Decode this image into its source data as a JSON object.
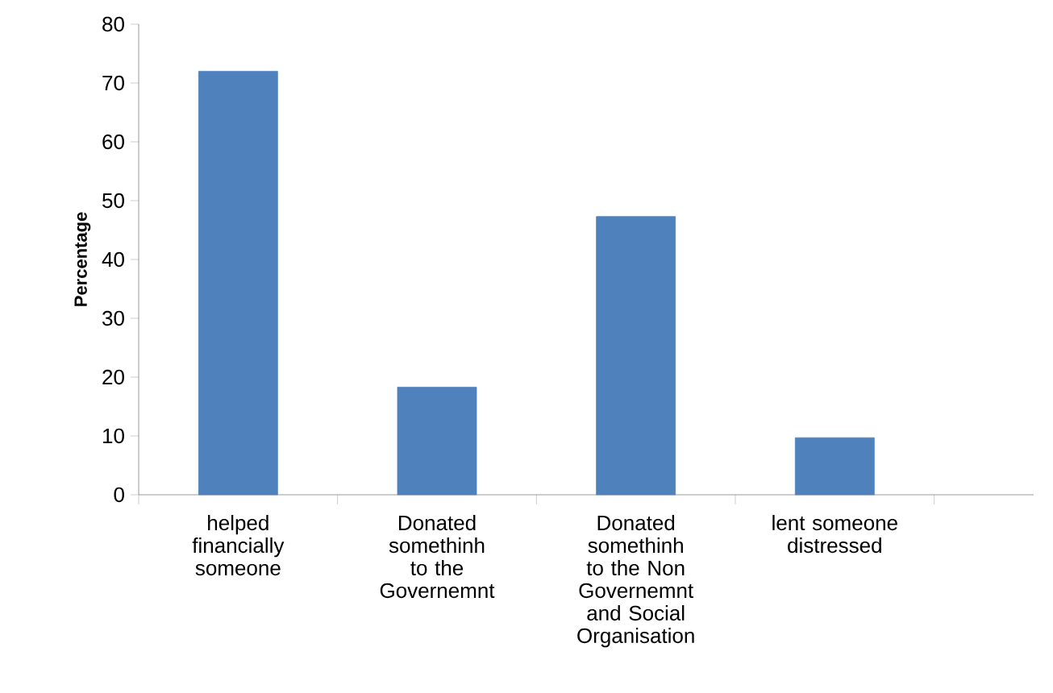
{
  "chart_data": {
    "type": "bar",
    "ylabel": "Percentage",
    "categories": [
      "helped financially someone",
      "Donated somethinh to the Governemnt",
      "Donated somethinh to the Non Governemnt and  Social Organisation",
      "lent someone distressed",
      null
    ],
    "values": [
      72,
      18.3,
      47.3,
      9.7,
      null
    ],
    "color": "#4f81bd",
    "ylim": [
      0,
      80
    ],
    "yticks": [
      0,
      10,
      20,
      30,
      40,
      50,
      60,
      70,
      80
    ]
  }
}
